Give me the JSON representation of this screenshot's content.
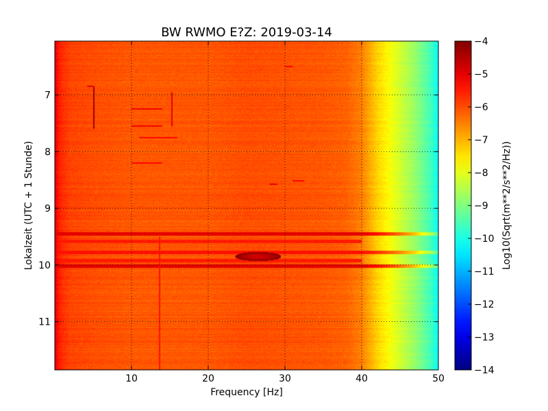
{
  "chart_data": {
    "type": "heatmap",
    "title": "BW RWMO E?Z: 2019-03-14",
    "xlabel": "Frequency [Hz]",
    "ylabel": "Lokalzeit (UTC + 1 Stunde)",
    "xlim": [
      0,
      50
    ],
    "ylim": [
      11.85,
      6.05
    ],
    "y_inverted": true,
    "x_ticks": [
      10,
      20,
      30,
      40,
      50
    ],
    "y_ticks": [
      7,
      8,
      9,
      10,
      11
    ],
    "grid": true,
    "grid_style": "dotted",
    "colormap": "jet",
    "colorbar": {
      "label": "Log10(Sqrt(m**2/s**2/Hz))",
      "range": [
        -14,
        -4
      ],
      "ticks": [
        -14,
        -13,
        -12,
        -11,
        -10,
        -9,
        -8,
        -7,
        -6,
        -5,
        -4
      ]
    },
    "frequency_profile": {
      "x": [
        0,
        0.5,
        1,
        2,
        5,
        10,
        15,
        20,
        25,
        30,
        35,
        38,
        40,
        41,
        42,
        43,
        44,
        45,
        46,
        47,
        48,
        49,
        50
      ],
      "values": [
        -5.0,
        -5.5,
        -5.7,
        -5.9,
        -6.0,
        -6.1,
        -6.1,
        -6.1,
        -6.0,
        -6.05,
        -6.1,
        -6.2,
        -6.5,
        -6.9,
        -7.3,
        -7.6,
        -7.9,
        -8.2,
        -8.5,
        -8.8,
        -9.2,
        -9.6,
        -10.2
      ]
    },
    "horizontal_bands": [
      {
        "time": 9.45,
        "value": -5.0,
        "x_range": [
          0,
          50
        ]
      },
      {
        "time": 9.58,
        "value": -5.5,
        "x_range": [
          0,
          40
        ]
      },
      {
        "time": 9.78,
        "value": -5.4,
        "x_range": [
          0,
          50
        ]
      },
      {
        "time": 9.92,
        "value": -5.5,
        "x_range": [
          0,
          40
        ]
      },
      {
        "time": 10.02,
        "value": -5.0,
        "x_range": [
          0,
          50
        ]
      }
    ],
    "hotspots": [
      {
        "freq": 26.5,
        "time": 9.85,
        "value": -4.8
      }
    ],
    "thin_features": [
      {
        "kind": "vertical",
        "freq": 5.1,
        "time_range": [
          6.85,
          7.6
        ],
        "value": -4.3
      },
      {
        "kind": "vertical",
        "freq": 15.3,
        "time_range": [
          6.95,
          7.55
        ],
        "value": -5.0
      },
      {
        "kind": "horizontal",
        "freq_range": [
          4.2,
          5.1
        ],
        "time": 6.85,
        "value": -5.0
      },
      {
        "kind": "horizontal",
        "freq_range": [
          10,
          14
        ],
        "time": 7.25,
        "value": -5.1
      },
      {
        "kind": "horizontal",
        "freq_range": [
          10,
          14
        ],
        "time": 7.55,
        "value": -5.1
      },
      {
        "kind": "horizontal",
        "freq_range": [
          11,
          16
        ],
        "time": 7.75,
        "value": -5.3
      },
      {
        "kind": "horizontal",
        "freq_range": [
          10,
          14
        ],
        "time": 8.2,
        "value": -5.3
      },
      {
        "kind": "horizontal",
        "freq_range": [
          31,
          32.5
        ],
        "time": 8.52,
        "value": -5.2
      },
      {
        "kind": "horizontal",
        "freq_range": [
          28,
          29
        ],
        "time": 8.57,
        "value": -5.0
      },
      {
        "kind": "horizontal",
        "freq_range": [
          30,
          31
        ],
        "time": 6.5,
        "value": -5.2
      },
      {
        "kind": "vertical",
        "freq": 13.7,
        "time_range": [
          9.5,
          11.85
        ],
        "value": -5.4
      }
    ]
  }
}
